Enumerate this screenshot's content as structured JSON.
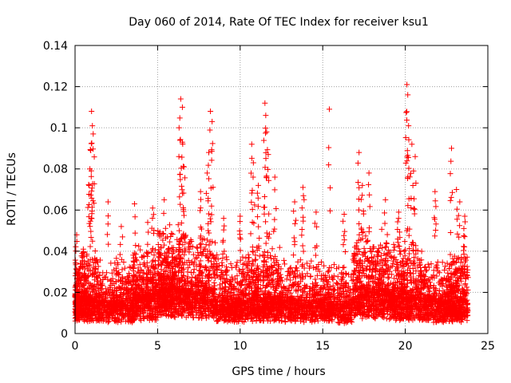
{
  "chart_data": {
    "type": "scatter",
    "title": "Day 060 of 2014, Rate Of TEC Index for receiver ksu1",
    "xlabel": "GPS time / hours",
    "ylabel": "ROTI / TECUs",
    "xlim": [
      0,
      25
    ],
    "ylim": [
      0,
      0.14
    ],
    "xticks": [
      0,
      5,
      10,
      15,
      20,
      25
    ],
    "xtick_labels": [
      "0",
      "5",
      "10",
      "15",
      "20",
      "25"
    ],
    "yticks": [
      0,
      0.02,
      0.04,
      0.06,
      0.08,
      0.1,
      0.12,
      0.14
    ],
    "ytick_labels": [
      "0",
      "0.02",
      "0.04",
      "0.06",
      "0.08",
      "0.1",
      "0.12",
      "0.14"
    ],
    "grid": true,
    "marker": "+",
    "color": "#ff0000",
    "series": [
      {
        "name": "ROTI",
        "description_of_distribution": "dense cloud mostly between 0.005 and 0.04 TECUs from 0 to 23.8 hours, with sporadic spikes",
        "peaks": [
          {
            "x": 0.1,
            "y": 0.048
          },
          {
            "x": 0.5,
            "y": 0.041
          },
          {
            "x": 1.0,
            "y": 0.108
          },
          {
            "x": 1.05,
            "y": 0.101
          },
          {
            "x": 1.1,
            "y": 0.097
          },
          {
            "x": 0.95,
            "y": 0.089
          },
          {
            "x": 0.9,
            "y": 0.08
          },
          {
            "x": 0.85,
            "y": 0.072
          },
          {
            "x": 2.0,
            "y": 0.064
          },
          {
            "x": 2.8,
            "y": 0.052
          },
          {
            "x": 3.6,
            "y": 0.063
          },
          {
            "x": 4.4,
            "y": 0.054
          },
          {
            "x": 4.7,
            "y": 0.061
          },
          {
            "x": 5.4,
            "y": 0.065
          },
          {
            "x": 6.4,
            "y": 0.114
          },
          {
            "x": 6.5,
            "y": 0.11
          },
          {
            "x": 6.3,
            "y": 0.1
          },
          {
            "x": 6.5,
            "y": 0.093
          },
          {
            "x": 6.6,
            "y": 0.081
          },
          {
            "x": 7.6,
            "y": 0.069
          },
          {
            "x": 8.2,
            "y": 0.108
          },
          {
            "x": 8.3,
            "y": 0.103
          },
          {
            "x": 8.1,
            "y": 0.088
          },
          {
            "x": 8.0,
            "y": 0.078
          },
          {
            "x": 9.0,
            "y": 0.056
          },
          {
            "x": 10.0,
            "y": 0.057
          },
          {
            "x": 10.7,
            "y": 0.092
          },
          {
            "x": 10.8,
            "y": 0.083
          },
          {
            "x": 11.1,
            "y": 0.072
          },
          {
            "x": 11.5,
            "y": 0.112
          },
          {
            "x": 11.55,
            "y": 0.106
          },
          {
            "x": 11.6,
            "y": 0.098
          },
          {
            "x": 11.7,
            "y": 0.087
          },
          {
            "x": 12.1,
            "y": 0.076
          },
          {
            "x": 13.3,
            "y": 0.064
          },
          {
            "x": 13.8,
            "y": 0.071
          },
          {
            "x": 14.6,
            "y": 0.059
          },
          {
            "x": 15.4,
            "y": 0.109
          },
          {
            "x": 16.3,
            "y": 0.058
          },
          {
            "x": 17.2,
            "y": 0.088
          },
          {
            "x": 17.4,
            "y": 0.072
          },
          {
            "x": 17.8,
            "y": 0.078
          },
          {
            "x": 18.8,
            "y": 0.065
          },
          {
            "x": 19.6,
            "y": 0.059
          },
          {
            "x": 20.1,
            "y": 0.121
          },
          {
            "x": 20.15,
            "y": 0.116
          },
          {
            "x": 20.2,
            "y": 0.101
          },
          {
            "x": 20.4,
            "y": 0.092
          },
          {
            "x": 20.6,
            "y": 0.086
          },
          {
            "x": 20.5,
            "y": 0.079
          },
          {
            "x": 21.8,
            "y": 0.069
          },
          {
            "x": 22.8,
            "y": 0.09
          },
          {
            "x": 23.1,
            "y": 0.07
          },
          {
            "x": 23.3,
            "y": 0.064
          },
          {
            "x": 23.6,
            "y": 0.057
          }
        ],
        "segments": [
          {
            "x0": 0.0,
            "x1": 0.3,
            "base": 0.012,
            "spread": 0.02,
            "density": 60
          },
          {
            "x0": 0.3,
            "x1": 1.5,
            "base": 0.013,
            "spread": 0.025,
            "density": 120
          },
          {
            "x0": 1.5,
            "x1": 3.5,
            "base": 0.012,
            "spread": 0.022,
            "density": 150
          },
          {
            "x0": 3.5,
            "x1": 5.0,
            "base": 0.014,
            "spread": 0.025,
            "density": 140
          },
          {
            "x0": 5.0,
            "x1": 6.0,
            "base": 0.018,
            "spread": 0.03,
            "density": 130
          },
          {
            "x0": 6.0,
            "x1": 8.5,
            "base": 0.016,
            "spread": 0.03,
            "density": 220
          },
          {
            "x0": 8.5,
            "x1": 10.5,
            "base": 0.012,
            "spread": 0.024,
            "density": 170
          },
          {
            "x0": 10.5,
            "x1": 12.5,
            "base": 0.013,
            "spread": 0.026,
            "density": 190
          },
          {
            "x0": 12.5,
            "x1": 15.0,
            "base": 0.012,
            "spread": 0.022,
            "density": 170
          },
          {
            "x0": 15.0,
            "x1": 16.8,
            "base": 0.011,
            "spread": 0.02,
            "density": 130
          },
          {
            "x0": 16.8,
            "x1": 19.0,
            "base": 0.016,
            "spread": 0.03,
            "density": 200
          },
          {
            "x0": 19.0,
            "x1": 21.0,
            "base": 0.014,
            "spread": 0.028,
            "density": 190
          },
          {
            "x0": 21.0,
            "x1": 22.5,
            "base": 0.012,
            "spread": 0.022,
            "density": 120
          },
          {
            "x0": 22.5,
            "x1": 23.8,
            "base": 0.012,
            "spread": 0.025,
            "density": 140
          }
        ]
      }
    ]
  }
}
